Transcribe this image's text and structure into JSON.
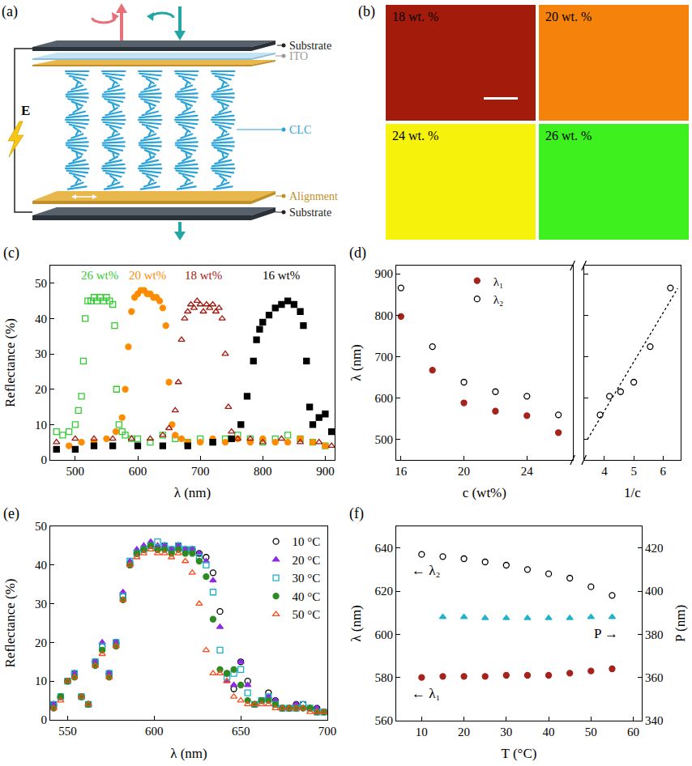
{
  "diagram": {
    "panel": "(a)",
    "labels": {
      "top_substrate": "Substrate",
      "ito": "ITO",
      "clc": "CLC",
      "alignment": "Alignment",
      "bottom_substrate": "Substrate",
      "field": "E"
    }
  },
  "swatches": {
    "panel": "(b)",
    "items": [
      {
        "label": "18 wt. %",
        "color": "#a31c0b"
      },
      {
        "label": "20 wt. %",
        "color": "#f5820a"
      },
      {
        "label": "24 wt. %",
        "color": "#f7f20c"
      },
      {
        "label": "26 wt. %",
        "color": "#3ff01f"
      }
    ]
  },
  "chart_data": [
    {
      "panel": "(c)",
      "type": "scatter",
      "x_label": "λ (nm)",
      "y_label": "Reflectance (%)",
      "xlim": [
        460,
        915
      ],
      "xticks": [
        500,
        600,
        700,
        800,
        900
      ],
      "ylim": [
        0,
        55
      ],
      "yticks": [
        0,
        10,
        20,
        30,
        40,
        50
      ],
      "series": [
        {
          "name": "26 wt%",
          "color": "#33cc33",
          "marker": "square-open",
          "x": [
            470,
            480,
            490,
            500,
            505,
            510,
            513,
            516,
            520,
            525,
            530,
            535,
            540,
            545,
            550,
            555,
            560,
            563,
            566,
            570,
            575,
            580,
            590,
            600,
            620,
            640,
            660,
            680,
            700,
            720,
            740,
            760,
            780,
            800,
            820,
            840,
            860,
            880,
            900
          ],
          "values": [
            8,
            7,
            8,
            10,
            14,
            18,
            28,
            40,
            45,
            45,
            46,
            45,
            46,
            45,
            46,
            45,
            44,
            38,
            20,
            10,
            8,
            7,
            6,
            6,
            5,
            7,
            6,
            5,
            6,
            5,
            6,
            7,
            6,
            5,
            6,
            7,
            6,
            5,
            4
          ]
        },
        {
          "name": "20 wt%",
          "color": "#ff8c00",
          "marker": "circle",
          "x": [
            470,
            490,
            510,
            530,
            550,
            565,
            575,
            580,
            585,
            590,
            595,
            600,
            605,
            610,
            615,
            620,
            625,
            630,
            635,
            640,
            645,
            650,
            655,
            660,
            670,
            680,
            700,
            720,
            740,
            760,
            780,
            800,
            820,
            840,
            860,
            880,
            900
          ],
          "values": [
            3,
            4,
            5,
            5,
            6,
            8,
            12,
            20,
            32,
            42,
            46,
            47,
            48,
            48,
            47,
            47,
            46,
            46,
            45,
            43,
            38,
            22,
            10,
            7,
            6,
            5,
            5,
            6,
            5,
            6,
            5,
            6,
            5,
            5,
            6,
            5,
            4
          ]
        },
        {
          "name": "18 wt%",
          "color": "#a01a10",
          "marker": "triangle-up-open",
          "x": [
            470,
            500,
            530,
            560,
            590,
            620,
            640,
            650,
            660,
            665,
            670,
            675,
            680,
            685,
            690,
            695,
            700,
            705,
            710,
            715,
            720,
            725,
            730,
            735,
            740,
            745,
            750,
            760,
            780,
            800,
            830,
            860,
            890,
            910
          ],
          "values": [
            5,
            6,
            6,
            6,
            6,
            6,
            7,
            9,
            14,
            22,
            34,
            40,
            42,
            44,
            43,
            45,
            44,
            42,
            44,
            43,
            44,
            42,
            43,
            40,
            30,
            15,
            8,
            6,
            6,
            5,
            6,
            5,
            5,
            4
          ]
        },
        {
          "name": "16 wt%",
          "color": "#000000",
          "marker": "square",
          "x": [
            470,
            500,
            530,
            560,
            600,
            640,
            680,
            720,
            750,
            765,
            775,
            785,
            790,
            795,
            800,
            810,
            820,
            830,
            840,
            850,
            860,
            865,
            870,
            875,
            880,
            890,
            900,
            910
          ],
          "values": [
            3,
            3,
            4,
            4,
            4,
            4,
            4,
            5,
            6,
            10,
            18,
            28,
            34,
            37,
            39,
            41,
            43,
            44,
            45,
            44,
            42,
            38,
            28,
            15,
            10,
            12,
            13,
            8
          ]
        }
      ]
    },
    {
      "panel": "(d)",
      "type": "scatter",
      "y_label": "λ (nm)",
      "ylim": [
        450,
        920
      ],
      "yticks": [
        500,
        600,
        700,
        800,
        900
      ],
      "legend": "upper center",
      "axes": [
        {
          "x_label": "c (wt%)",
          "xlim": [
            15.7,
            26.9
          ],
          "xticks": [
            16,
            20,
            24
          ],
          "series": [
            {
              "name": "λ₁",
              "color": "#a5231b",
              "marker": "circle",
              "x": [
                16,
                18,
                20,
                22,
                24,
                26
              ],
              "values": [
                797,
                667,
                588,
                568,
                557,
                516
              ]
            },
            {
              "name": "λ₂",
              "color": "#000000",
              "marker": "circle-open",
              "x": [
                16,
                18,
                20,
                22,
                24,
                26
              ],
              "values": [
                866,
                724,
                638,
                615,
                604,
                559
              ]
            }
          ]
        },
        {
          "x_label": "1/c",
          "xlim": [
            3.3,
            6.6
          ],
          "xticks": [
            4,
            5,
            6
          ],
          "series": [
            {
              "color": "#000000",
              "marker": "circle-open",
              "x": [
                6.25,
                5.56,
                5,
                4.55,
                4.17,
                3.85
              ],
              "values": [
                866,
                724,
                638,
                615,
                604,
                559
              ]
            },
            {
              "color": "#000000",
              "line_style": "dot",
              "x": [
                3.42,
                6.5
              ],
              "values": [
                500,
                865
              ]
            }
          ]
        }
      ]
    },
    {
      "panel": "(e)",
      "type": "scatter",
      "x_label": "λ (nm)",
      "y_label": "Reflectance (%)",
      "legend": "upper right",
      "xlim": [
        540,
        700
      ],
      "xticks": [
        550,
        600,
        650,
        700
      ],
      "ylim": [
        0,
        50
      ],
      "yticks": [
        0,
        10,
        20,
        30,
        40,
        50
      ],
      "x": [
        542,
        546,
        550,
        554,
        558,
        562,
        566,
        570,
        574,
        578,
        582,
        586,
        590,
        594,
        598,
        602,
        606,
        610,
        614,
        618,
        622,
        626,
        630,
        634,
        638,
        642,
        646,
        650,
        654,
        658,
        662,
        666,
        670,
        674,
        678,
        682,
        686,
        690,
        694,
        698
      ],
      "series": [
        {
          "name": "10 °C",
          "color": "#000000",
          "marker": "circle-open",
          "values": [
            4,
            6,
            10,
            12,
            6,
            4,
            15,
            19,
            12,
            20,
            32,
            40,
            43,
            44,
            45,
            44,
            45,
            44,
            45,
            44,
            44,
            43,
            42,
            38,
            28,
            12,
            8,
            15,
            10,
            4,
            5,
            7,
            5,
            3,
            3,
            4,
            4,
            3,
            3,
            2
          ]
        },
        {
          "name": "20 °C",
          "color": "#8a2be2",
          "marker": "triangle-up",
          "values": [
            4,
            6,
            10,
            12,
            6,
            4,
            15,
            20,
            12,
            20,
            33,
            41,
            44,
            45,
            46,
            45,
            45,
            44,
            45,
            44,
            44,
            43,
            41,
            36,
            24,
            10,
            9,
            15,
            9,
            4,
            5,
            6,
            5,
            3,
            3,
            4,
            3,
            3,
            3,
            2
          ]
        },
        {
          "name": "30 °C",
          "color": "#1cb0c8",
          "marker": "square-open",
          "values": [
            4,
            6,
            10,
            12,
            6,
            4,
            15,
            19,
            12,
            20,
            32,
            41,
            43,
            44,
            45,
            46,
            45,
            44,
            45,
            44,
            44,
            42,
            40,
            33,
            18,
            11,
            12,
            13,
            7,
            4,
            5,
            6,
            4,
            3,
            3,
            3,
            4,
            3,
            2,
            2
          ]
        },
        {
          "name": "40 °C",
          "color": "#2e8b22",
          "marker": "circle",
          "values": [
            3,
            6,
            10,
            11,
            6,
            4,
            14,
            18,
            11,
            19,
            31,
            40,
            43,
            44,
            45,
            44,
            44,
            43,
            44,
            43,
            43,
            41,
            37,
            26,
            13,
            12,
            13,
            9,
            5,
            4,
            5,
            5,
            4,
            3,
            3,
            3,
            3,
            3,
            2,
            2
          ]
        },
        {
          "name": "50 °C",
          "color": "#ff4a1a",
          "marker": "triangle-up-open",
          "values": [
            3,
            5,
            10,
            11,
            6,
            4,
            14,
            17,
            11,
            19,
            31,
            40,
            42,
            43,
            44,
            43,
            43,
            42,
            43,
            41,
            38,
            30,
            18,
            12,
            12,
            10,
            6,
            5,
            4,
            4,
            4,
            4,
            3,
            3,
            3,
            3,
            3,
            2,
            2,
            2
          ]
        }
      ]
    },
    {
      "panel": "(f)",
      "type": "scatter",
      "x_label": "T (°C)",
      "y_label": "λ (nm)",
      "y2_label": "P (nm)",
      "xlim": [
        4,
        62
      ],
      "xticks": [
        10,
        20,
        30,
        40,
        50,
        60
      ],
      "ylim": [
        560,
        650
      ],
      "yticks": [
        560,
        580,
        600,
        620,
        640
      ],
      "y2lim": [
        340,
        430
      ],
      "y2ticks": [
        340,
        360,
        380,
        400,
        420
      ],
      "series": [
        {
          "name": "← λ₂",
          "color": "#000000",
          "marker": "circle-open",
          "x": [
            10,
            15,
            20,
            25,
            30,
            35,
            40,
            45,
            50,
            55
          ],
          "values": [
            637,
            636,
            635,
            633.5,
            632,
            630,
            628,
            626,
            622,
            618
          ]
        },
        {
          "name": "← λ₁",
          "color": "#a5231b",
          "marker": "circle",
          "x": [
            10,
            15,
            20,
            25,
            30,
            35,
            40,
            45,
            50,
            55
          ],
          "values": [
            580,
            580.5,
            580.5,
            580.5,
            581,
            581,
            581,
            582,
            583,
            584
          ]
        },
        {
          "name": "P →",
          "color": "#1fb3c8",
          "marker": "triangle-up",
          "axis": "y2",
          "x": [
            15,
            20,
            25,
            30,
            35,
            40,
            45,
            50,
            55
          ],
          "values": [
            388,
            388,
            387.5,
            387.5,
            387.5,
            387.5,
            387.5,
            388,
            388
          ]
        }
      ]
    }
  ]
}
